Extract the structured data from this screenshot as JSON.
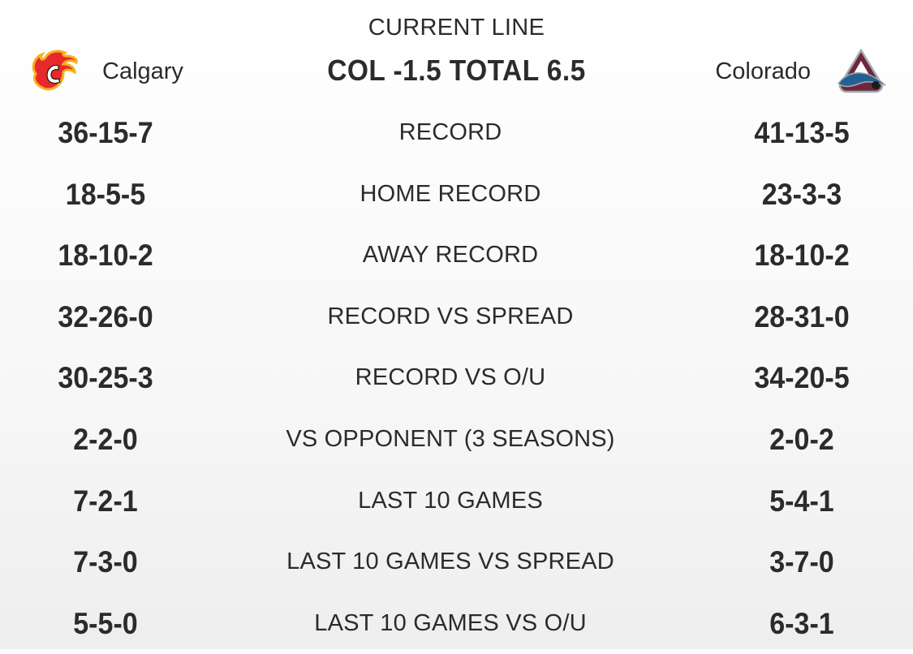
{
  "header": {
    "current_line_label": "CURRENT LINE",
    "line_value": "COL -1.5 TOTAL 6.5"
  },
  "teams": {
    "home": {
      "name": "Calgary",
      "logo_icon": "calgary-flames-logo",
      "color": "#e8282b"
    },
    "away": {
      "name": "Colorado",
      "logo_icon": "colorado-avalanche-logo",
      "color": "#6f263d"
    }
  },
  "rows": [
    {
      "label": "RECORD",
      "home": "36-15-7",
      "away": "41-13-5"
    },
    {
      "label": "HOME RECORD",
      "home": "18-5-5",
      "away": "23-3-3"
    },
    {
      "label": "AWAY RECORD",
      "home": "18-10-2",
      "away": "18-10-2"
    },
    {
      "label": "RECORD VS SPREAD",
      "home": "32-26-0",
      "away": "28-31-0"
    },
    {
      "label": "RECORD VS O/U",
      "home": "30-25-3",
      "away": "34-20-5"
    },
    {
      "label": "VS OPPONENT (3 SEASONS)",
      "home": "2-2-0",
      "away": "2-0-2"
    },
    {
      "label": "LAST 10 GAMES",
      "home": "7-2-1",
      "away": "5-4-1"
    },
    {
      "label": "LAST 10 GAMES VS SPREAD",
      "home": "7-3-0",
      "away": "3-7-0"
    },
    {
      "label": "LAST 10 GAMES VS O/U",
      "home": "5-5-0",
      "away": "6-3-1"
    }
  ]
}
